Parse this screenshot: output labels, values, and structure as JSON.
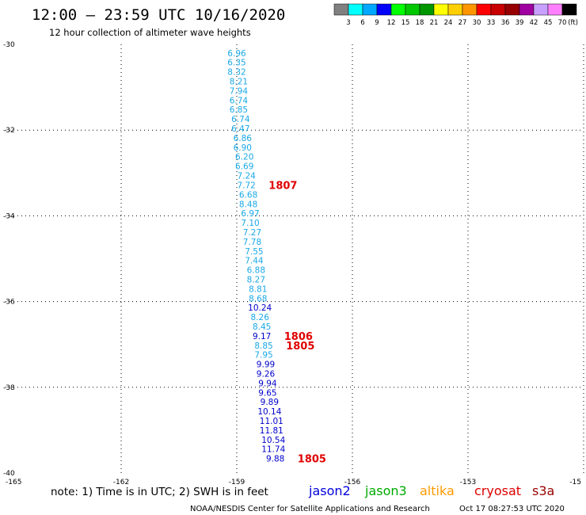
{
  "title": "12:00 – 23:59 UTC 10/16/2020",
  "subtitle": "12 hour collection of altimeter wave heights",
  "note": "note:  1) Time is in UTC; 2) SWH is in feet",
  "footer_left": "NOAA/NESDIS Center for Satellite Applications and Research",
  "footer_right": "Oct 17 08:27:53 UTC 2020",
  "satellites": [
    {
      "name": "jason2",
      "color": "#0000dd"
    },
    {
      "name": "jason3",
      "color": "#00aa00"
    },
    {
      "name": "altika",
      "color": "#ff9900"
    },
    {
      "name": "cryosat",
      "color": "#dd0000"
    },
    {
      "name": "s3a",
      "color": "#990000"
    }
  ],
  "color_scale": {
    "labels": [
      "3",
      "6",
      "9",
      "12",
      "15",
      "18",
      "21",
      "24",
      "27",
      "30",
      "33",
      "36",
      "39",
      "42",
      "45",
      "70"
    ],
    "unit": "(ft)",
    "colors": [
      "#808080",
      "#00ffff",
      "#00a8ff",
      "#0000ff",
      "#00ff00",
      "#00c800",
      "#009600",
      "#ffff00",
      "#ffd000",
      "#ff9600",
      "#ff0000",
      "#c80000",
      "#960000",
      "#a000a0",
      "#c8a0ff",
      "#ff80ff",
      "#000000"
    ]
  },
  "chart_data": {
    "type": "scatter",
    "x_ticks": [
      "-165",
      "-162",
      "-159",
      "-156",
      "-153",
      "-15"
    ],
    "y_ticks": [
      "-30",
      "-32",
      "-34",
      "-36",
      "-38",
      "-40"
    ],
    "xlim": [
      -165,
      -150
    ],
    "ylim": [
      -40,
      -30
    ],
    "grid": true,
    "points": [
      {
        "lon": -159.0,
        "lat": -30.2,
        "swh": "6.96",
        "sat": "altika"
      },
      {
        "lon": -159.0,
        "lat": -30.42,
        "swh": "6.35",
        "sat": "altika"
      },
      {
        "lon": -159.0,
        "lat": -30.64,
        "swh": "8.32",
        "sat": "altika"
      },
      {
        "lon": -158.95,
        "lat": -30.86,
        "swh": "8.21",
        "sat": "altika"
      },
      {
        "lon": -158.95,
        "lat": -31.08,
        "swh": "7.94",
        "sat": "altika"
      },
      {
        "lon": -158.95,
        "lat": -31.3,
        "swh": "6.74",
        "sat": "altika"
      },
      {
        "lon": -158.95,
        "lat": -31.52,
        "swh": "6.85",
        "sat": "altika"
      },
      {
        "lon": -158.9,
        "lat": -31.74,
        "swh": "6.74",
        "sat": "altika"
      },
      {
        "lon": -158.9,
        "lat": -31.96,
        "swh": "6.47",
        "sat": "altika"
      },
      {
        "lon": -158.85,
        "lat": -32.18,
        "swh": "6.86",
        "sat": "altika"
      },
      {
        "lon": -158.85,
        "lat": -32.4,
        "swh": "6.90",
        "sat": "altika"
      },
      {
        "lon": -158.8,
        "lat": -32.62,
        "swh": "6.20",
        "sat": "altika"
      },
      {
        "lon": -158.8,
        "lat": -32.84,
        "swh": "6.69",
        "sat": "altika"
      },
      {
        "lon": -158.75,
        "lat": -33.06,
        "swh": "7.24",
        "sat": "altika"
      },
      {
        "lon": -158.75,
        "lat": -33.28,
        "swh": "7.72",
        "sat": "altika"
      },
      {
        "lon": -158.7,
        "lat": -33.5,
        "swh": "6.68",
        "sat": "altika"
      },
      {
        "lon": -158.7,
        "lat": -33.72,
        "swh": "8.48",
        "sat": "altika"
      },
      {
        "lon": -158.65,
        "lat": -33.94,
        "swh": "6.97",
        "sat": "altika"
      },
      {
        "lon": -158.65,
        "lat": -34.16,
        "swh": "7.10",
        "sat": "altika"
      },
      {
        "lon": -158.6,
        "lat": -34.38,
        "swh": "7.27",
        "sat": "altika"
      },
      {
        "lon": -158.6,
        "lat": -34.6,
        "swh": "7.78",
        "sat": "altika"
      },
      {
        "lon": -158.55,
        "lat": -34.82,
        "swh": "7.55",
        "sat": "altika"
      },
      {
        "lon": -158.55,
        "lat": -35.04,
        "swh": "7.44",
        "sat": "altika"
      },
      {
        "lon": -158.5,
        "lat": -35.26,
        "swh": "6.88",
        "sat": "altika"
      },
      {
        "lon": -158.5,
        "lat": -35.48,
        "swh": "8.27",
        "sat": "altika"
      },
      {
        "lon": -158.45,
        "lat": -35.7,
        "swh": "8.81",
        "sat": "altika"
      },
      {
        "lon": -158.45,
        "lat": -35.92,
        "swh": "8.68",
        "sat": "altika"
      },
      {
        "lon": -158.4,
        "lat": -36.14,
        "swh": "10.24",
        "sat": "jason2"
      },
      {
        "lon": -158.4,
        "lat": -36.36,
        "swh": "8.26",
        "sat": "altika"
      },
      {
        "lon": -158.35,
        "lat": -36.58,
        "swh": "8.45",
        "sat": "altika"
      },
      {
        "lon": -158.35,
        "lat": -36.8,
        "swh": "9.17",
        "sat": "jason2"
      },
      {
        "lon": -158.3,
        "lat": -37.02,
        "swh": "8.85",
        "sat": "altika"
      },
      {
        "lon": -158.3,
        "lat": -37.24,
        "swh": "7.95",
        "sat": "altika"
      },
      {
        "lon": -158.25,
        "lat": -37.46,
        "swh": "9.99",
        "sat": "jason2"
      },
      {
        "lon": -158.25,
        "lat": -37.68,
        "swh": "9.26",
        "sat": "jason2"
      },
      {
        "lon": -158.2,
        "lat": -37.9,
        "swh": "9.94",
        "sat": "jason2"
      },
      {
        "lon": -158.2,
        "lat": -38.12,
        "swh": "9.65",
        "sat": "jason2"
      },
      {
        "lon": -158.15,
        "lat": -38.34,
        "swh": "9.89",
        "sat": "jason2"
      },
      {
        "lon": -158.15,
        "lat": -38.56,
        "swh": "10.14",
        "sat": "jason2"
      },
      {
        "lon": -158.1,
        "lat": -38.78,
        "swh": "11.01",
        "sat": "jason2"
      },
      {
        "lon": -158.1,
        "lat": -39.0,
        "swh": "11.81",
        "sat": "jason2"
      },
      {
        "lon": -158.05,
        "lat": -39.22,
        "swh": "10.54",
        "sat": "jason2"
      },
      {
        "lon": -158.05,
        "lat": -39.44,
        "swh": "11.74",
        "sat": "jason2"
      },
      {
        "lon": -158.0,
        "lat": -39.66,
        "swh": "9.88",
        "sat": "jason2"
      }
    ],
    "annotations": [
      {
        "lon": -157.8,
        "lat": -33.28,
        "text": "1807"
      },
      {
        "lon": -157.4,
        "lat": -36.8,
        "text": "1806"
      },
      {
        "lon": -157.35,
        "lat": -37.02,
        "text": "1805"
      },
      {
        "lon": -157.05,
        "lat": -39.66,
        "text": "1805"
      }
    ]
  }
}
